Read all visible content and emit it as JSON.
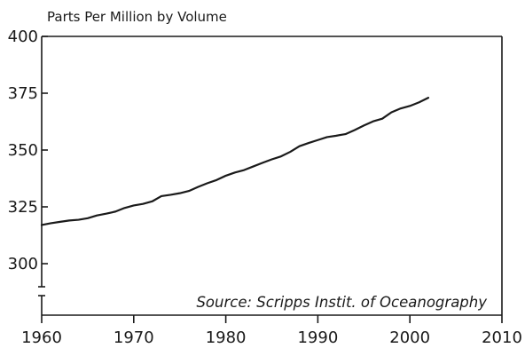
{
  "chart_data": {
    "type": "line",
    "title": "",
    "ylabel": "Parts Per Million by Volume",
    "xlabel": "",
    "annotation": "Source: Scripps Instit. of Oceanography",
    "xlim": [
      1960,
      2010
    ],
    "ylim": [
      300,
      400
    ],
    "axis_break": true,
    "grid": false,
    "x_ticks": [
      "1960",
      "1970",
      "1980",
      "1990",
      "2000",
      "2010"
    ],
    "y_ticks": [
      "300",
      "325",
      "350",
      "375",
      "400"
    ],
    "series": [
      {
        "name": "",
        "color": "#1a1a1a",
        "x": [
          1960,
          1961,
          1962,
          1963,
          1964,
          1965,
          1966,
          1967,
          1968,
          1969,
          1970,
          1971,
          1972,
          1973,
          1974,
          1975,
          1976,
          1977,
          1978,
          1979,
          1980,
          1981,
          1982,
          1983,
          1984,
          1985,
          1986,
          1987,
          1988,
          1989,
          1990,
          1991,
          1992,
          1993,
          1994,
          1995,
          1996,
          1997,
          1998,
          1999,
          2000,
          2001,
          2002
        ],
        "values": [
          317.0,
          317.8,
          318.4,
          319.0,
          319.3,
          320.0,
          321.2,
          322.0,
          322.9,
          324.5,
          325.6,
          326.3,
          327.4,
          329.7,
          330.3,
          331.0,
          332.0,
          333.8,
          335.4,
          336.8,
          338.7,
          340.1,
          341.2,
          342.8,
          344.4,
          345.9,
          347.2,
          349.2,
          351.7,
          353.1,
          354.4,
          355.7,
          356.3,
          357.0,
          358.8,
          360.8,
          362.6,
          363.8,
          366.6,
          368.3,
          369.4,
          371.0,
          373.0
        ]
      }
    ]
  }
}
